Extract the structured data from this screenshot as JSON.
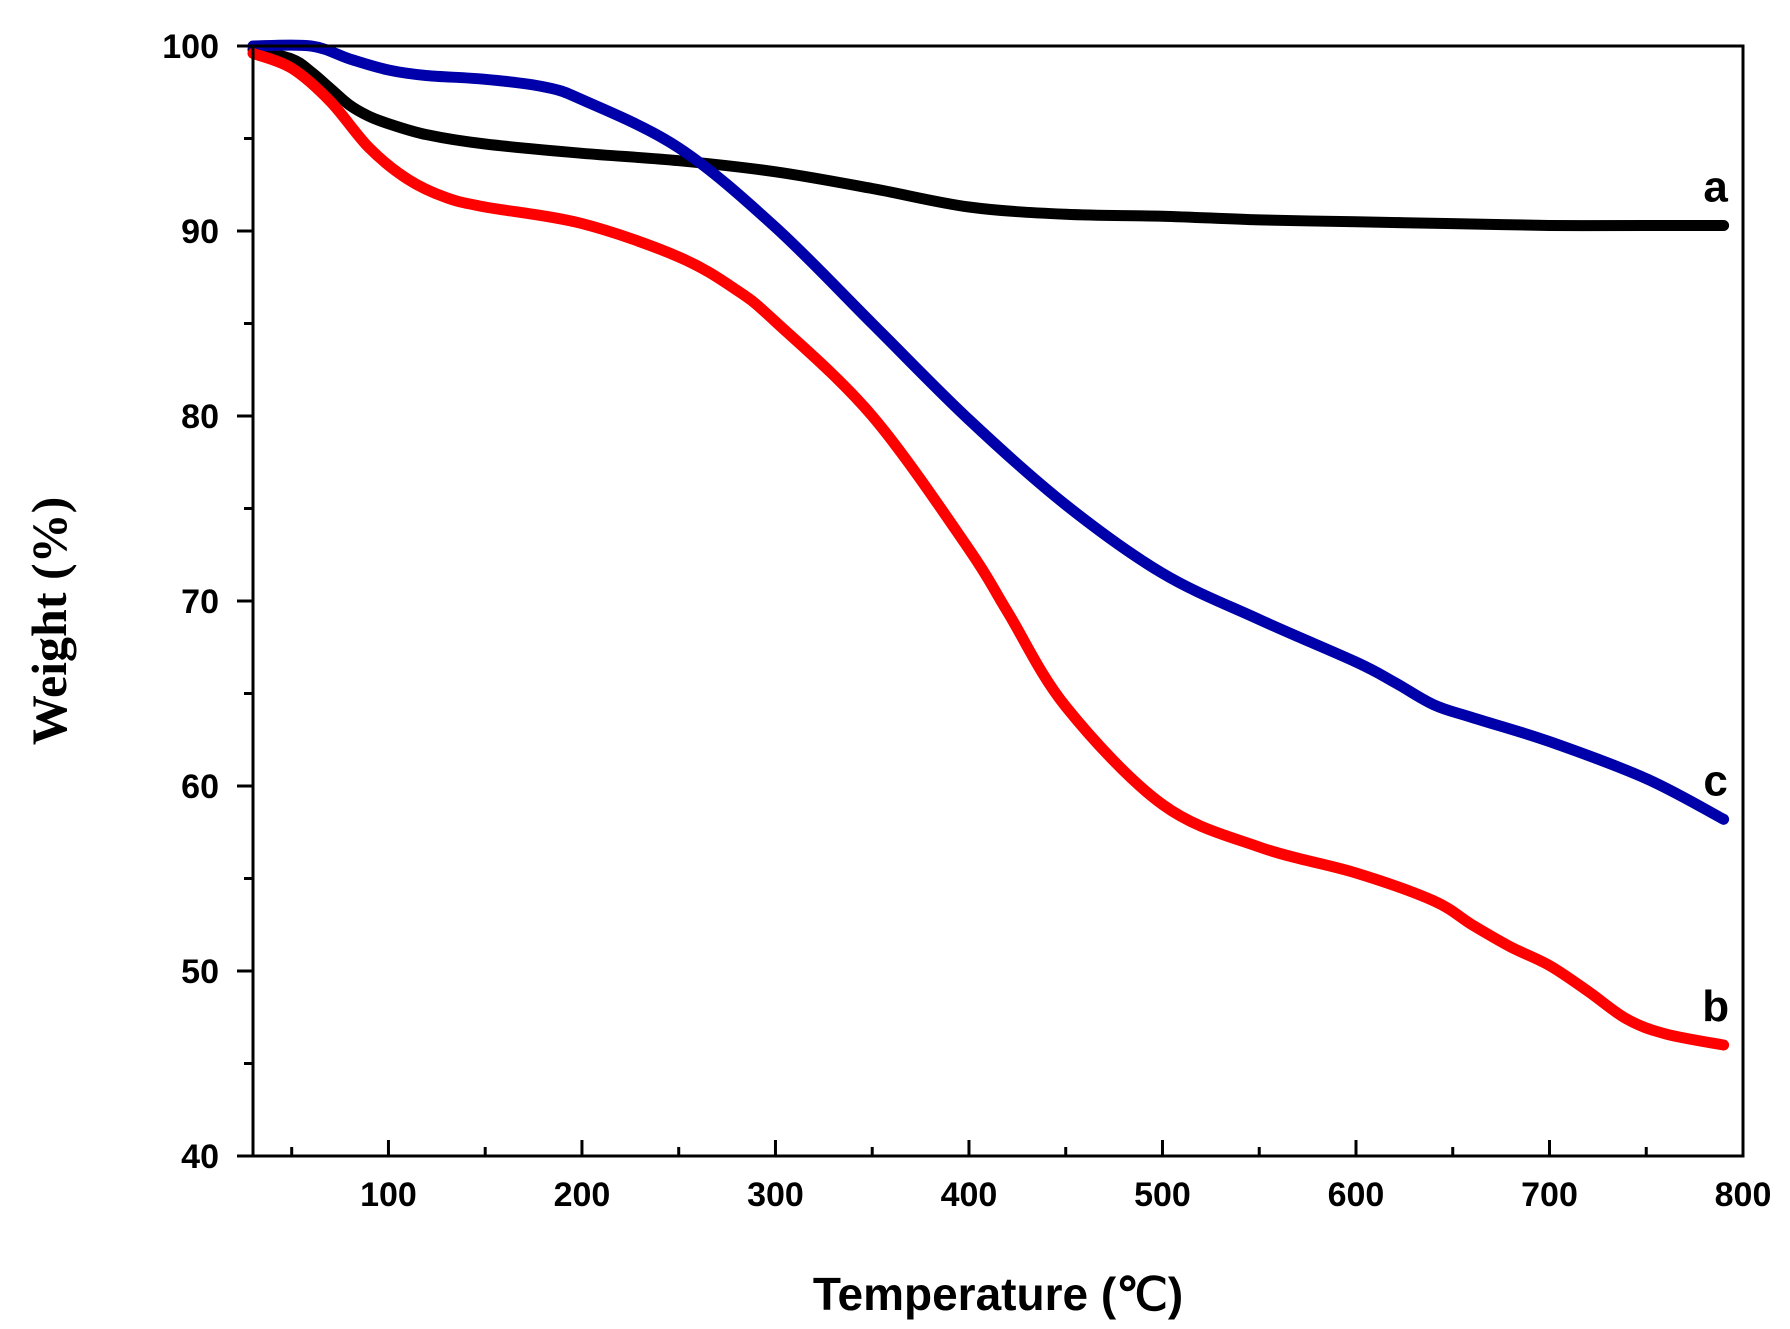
{
  "chart_data": {
    "type": "line",
    "title": "",
    "xlabel": "Temperature (℃)",
    "ylabel": "Weight (%)",
    "xlim": [
      30,
      800
    ],
    "ylim": [
      40,
      100
    ],
    "x_ticks": [
      100,
      200,
      300,
      400,
      500,
      600,
      700,
      800
    ],
    "x_minor_ticks": [
      50,
      150,
      250,
      350,
      450,
      550,
      650,
      750
    ],
    "y_ticks": [
      40,
      50,
      60,
      70,
      80,
      90,
      100
    ],
    "y_minor_ticks": [
      45,
      55,
      65,
      75,
      85,
      95
    ],
    "grid": false,
    "series": [
      {
        "name": "a",
        "color": "#000000",
        "x": [
          30,
          50,
          60,
          70,
          80,
          90,
          100,
          120,
          150,
          200,
          250,
          300,
          350,
          400,
          450,
          500,
          550,
          600,
          650,
          700,
          750,
          790
        ],
        "y": [
          99.8,
          99.3,
          98.6,
          97.7,
          96.8,
          96.2,
          95.8,
          95.2,
          94.7,
          94.2,
          93.8,
          93.2,
          92.3,
          91.3,
          90.9,
          90.8,
          90.6,
          90.5,
          90.4,
          90.3,
          90.3,
          90.3
        ]
      },
      {
        "name": "b",
        "color": "#ff0000",
        "x": [
          30,
          50,
          70,
          90,
          110,
          130,
          150,
          200,
          250,
          280,
          300,
          350,
          400,
          420,
          450,
          500,
          550,
          600,
          640,
          660,
          680,
          700,
          720,
          740,
          760,
          790
        ],
        "y": [
          99.6,
          98.8,
          97.0,
          94.5,
          92.8,
          91.8,
          91.3,
          90.4,
          88.6,
          86.8,
          85.1,
          80.0,
          72.8,
          69.4,
          64.3,
          59.0,
          56.7,
          55.3,
          53.8,
          52.5,
          51.3,
          50.3,
          48.9,
          47.4,
          46.6,
          46.0
        ]
      },
      {
        "name": "c",
        "color": "#0000aa",
        "x": [
          30,
          60,
          80,
          100,
          120,
          150,
          180,
          200,
          250,
          300,
          350,
          400,
          450,
          500,
          550,
          600,
          620,
          640,
          660,
          700,
          750,
          790
        ],
        "y": [
          100,
          100,
          99.3,
          98.7,
          98.4,
          98.2,
          97.8,
          97.1,
          94.5,
          90.2,
          85.0,
          79.8,
          75.2,
          71.5,
          69.0,
          66.7,
          65.6,
          64.4,
          63.7,
          62.4,
          60.4,
          58.2
        ]
      }
    ],
    "annotations": [
      {
        "text": "a",
        "series": "a"
      },
      {
        "text": "b",
        "series": "b"
      },
      {
        "text": "c",
        "series": "c"
      }
    ]
  }
}
